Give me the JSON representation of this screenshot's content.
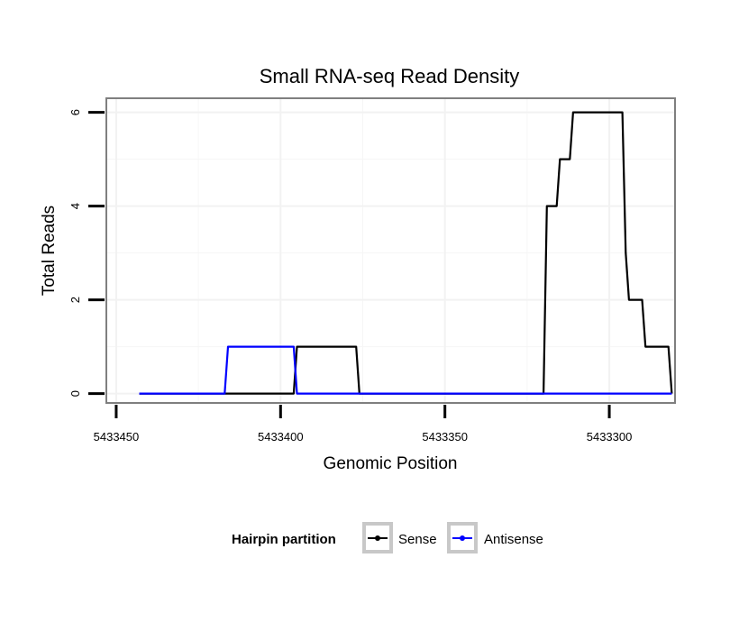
{
  "chart_data": {
    "type": "line",
    "title": "Small RNA-seq Read Density",
    "xlabel": "Genomic Position",
    "ylabel": "Total Reads",
    "xlim": [
      5433453,
      5433280
    ],
    "x_reversed": true,
    "ylim": [
      -0.2,
      6.3
    ],
    "x_ticks": [
      5433450,
      5433400,
      5433350,
      5433300
    ],
    "x_tick_labels": [
      "5433450",
      "5433400",
      "5433350",
      "5433300"
    ],
    "y_ticks": [
      0,
      2,
      4,
      6
    ],
    "y_tick_labels": [
      "0",
      "2",
      "4",
      "6"
    ],
    "x_minor_ticks": [
      5433425,
      5433375,
      5433325
    ],
    "y_minor_ticks": [
      1,
      3,
      5
    ],
    "grid": true,
    "legend": {
      "title": "Hairpin partition",
      "position": "bottom"
    },
    "series": [
      {
        "name": "Sense",
        "color": "#000000",
        "x": [
          5433443,
          5433396,
          5433395,
          5433377,
          5433376,
          5433320,
          5433319,
          5433316,
          5433315,
          5433312,
          5433311,
          5433308,
          5433307,
          5433296,
          5433295,
          5433294,
          5433293,
          5433290,
          5433289,
          5433282,
          5433281
        ],
        "y": [
          0,
          0,
          1,
          1,
          0,
          0,
          4,
          4,
          5,
          5,
          6,
          6,
          6,
          6,
          3,
          2,
          2,
          2,
          1,
          1,
          0
        ]
      },
      {
        "name": "Antisense",
        "color": "#0000ff",
        "x": [
          5433443,
          5433417,
          5433416,
          5433396,
          5433395,
          5433281
        ],
        "y": [
          0,
          0,
          1,
          1,
          0,
          0
        ]
      }
    ]
  }
}
